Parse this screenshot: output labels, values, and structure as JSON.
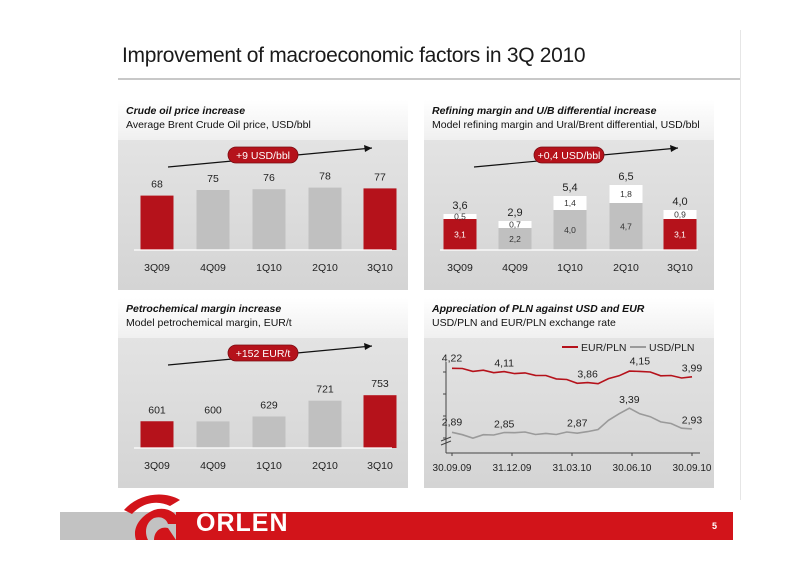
{
  "title": "Improvement of macroeconomic factors in 3Q 2010",
  "page_number": "5",
  "logo_text": "ORLEN",
  "colors": {
    "red": "#b5121b",
    "grey_bar": "#c0c0c0",
    "line_red": "#b5121b",
    "line_grey": "#9a9a9a",
    "footer_red": "#d2141a"
  },
  "panels": {
    "crude": {
      "title": "Crude oil price increase",
      "subtitle": "Average Brent Crude Oil price, USD/bbl"
    },
    "refining": {
      "title": "Refining margin and U/B differential increase",
      "subtitle": "Model refining margin and Ural/Brent differential, USD/bbl"
    },
    "petro": {
      "title": "Petrochemical margin increase",
      "subtitle": "Model petrochemical margin, EUR/t"
    },
    "pln": {
      "title": "Appreciation of PLN against USD and EUR",
      "subtitle": "USD/PLN and EUR/PLN exchange rate"
    }
  },
  "chart_data": [
    {
      "type": "bar",
      "categories": [
        "3Q09",
        "4Q09",
        "1Q10",
        "2Q10",
        "3Q10"
      ],
      "values": [
        68,
        75,
        76,
        78,
        77
      ],
      "bar_colors": [
        "#b5121b",
        "#c0c0c0",
        "#c0c0c0",
        "#c0c0c0",
        "#b5121b"
      ],
      "annotation": "+9 USD/bbl",
      "ylim": [
        0,
        100
      ]
    },
    {
      "type": "bar",
      "stacked": true,
      "categories": [
        "3Q09",
        "4Q09",
        "1Q10",
        "2Q10",
        "3Q10"
      ],
      "series": [
        {
          "values": [
            3.1,
            2.2,
            4.0,
            4.7,
            3.1
          ],
          "labels": [
            "3,1",
            "2,2",
            "4,0",
            "4,7",
            "3,1"
          ]
        },
        {
          "values": [
            0.5,
            0.7,
            1.4,
            1.8,
            0.9
          ],
          "labels": [
            "0,5",
            "0,7",
            "1,4",
            "1,8",
            "0,9"
          ]
        }
      ],
      "totals": [
        "3,6",
        "2,9",
        "5,4",
        "6,5",
        "4,0"
      ],
      "base_colors": [
        "#b5121b",
        "#c0c0c0",
        "#c0c0c0",
        "#c0c0c0",
        "#b5121b"
      ],
      "annotation": "+0,4 USD/bbl",
      "ylim": [
        0,
        8
      ]
    },
    {
      "type": "bar",
      "categories": [
        "3Q09",
        "4Q09",
        "1Q10",
        "2Q10",
        "3Q10"
      ],
      "values": [
        601,
        600,
        629,
        721,
        753
      ],
      "bar_colors": [
        "#b5121b",
        "#c0c0c0",
        "#c0c0c0",
        "#c0c0c0",
        "#b5121b"
      ],
      "annotation": "+152 EUR/t",
      "ylim": [
        0,
        900
      ]
    },
    {
      "type": "line",
      "x_ticks": [
        "30.09.09",
        "31.12.09",
        "31.03.10",
        "30.06.10",
        "30.09.10"
      ],
      "series": [
        {
          "name": "EUR/PLN",
          "color": "#b5121b",
          "values": [
            4.22,
            4.18,
            4.15,
            4.14,
            4.12,
            4.11,
            4.1,
            4.08,
            4.06,
            4.02,
            3.98,
            3.93,
            3.88,
            3.86,
            3.87,
            3.95,
            4.05,
            4.12,
            4.15,
            4.1,
            4.05,
            4.02,
            4.0,
            3.99
          ],
          "labels": [
            {
              "index": 0,
              "text": "4,22"
            },
            {
              "index": 5,
              "text": "4,11"
            },
            {
              "index": 13,
              "text": "3,86"
            },
            {
              "index": 18,
              "text": "4,15"
            },
            {
              "index": 23,
              "text": "3,99"
            }
          ]
        },
        {
          "name": "USD/PLN",
          "color": "#9a9a9a",
          "values": [
            2.89,
            2.8,
            2.76,
            2.8,
            2.83,
            2.85,
            2.88,
            2.86,
            2.84,
            2.83,
            2.84,
            2.86,
            2.87,
            2.87,
            2.95,
            3.12,
            3.3,
            3.39,
            3.3,
            3.2,
            3.12,
            3.05,
            2.98,
            2.93
          ],
          "labels": [
            {
              "index": 0,
              "text": "2,89"
            },
            {
              "index": 5,
              "text": "2,85"
            },
            {
              "index": 12,
              "text": "2,87"
            },
            {
              "index": 17,
              "text": "3,39"
            },
            {
              "index": 23,
              "text": "2,93"
            }
          ]
        }
      ]
    }
  ]
}
